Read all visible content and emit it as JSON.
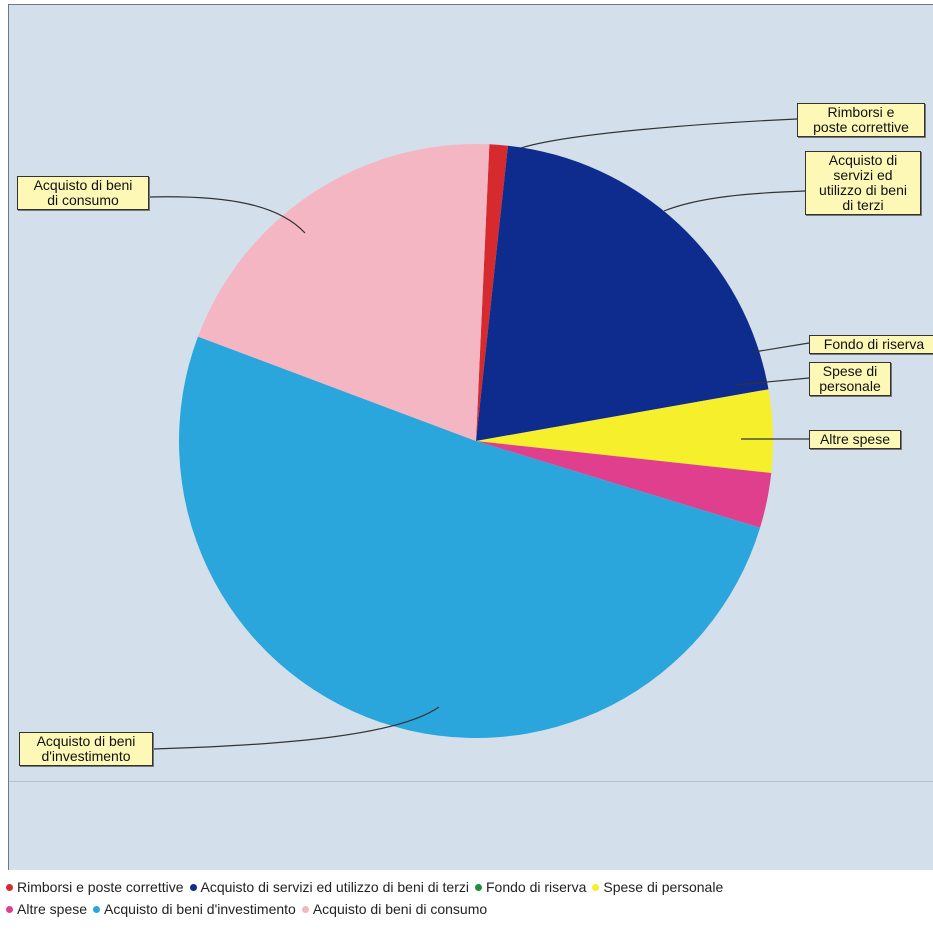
{
  "chart_data": {
    "type": "pie",
    "title": "",
    "slices": [
      {
        "label": "Rimborsi e poste correttive",
        "value": 1.0,
        "color": "#d62a2e"
      },
      {
        "label": "Acquisto di servizi ed utilizzo di beni di terzi",
        "value": 20.5,
        "color": "#0e2c8e"
      },
      {
        "label": "Fondo di riserva",
        "value": 0.0,
        "color": "#1e8f3a"
      },
      {
        "label": "Spese di personale",
        "value": 4.5,
        "color": "#f6ef2c"
      },
      {
        "label": "Altre spese",
        "value": 3.0,
        "color": "#e03f8e"
      },
      {
        "label": "Acquisto di beni d'investimento",
        "value": 51.0,
        "color": "#2aa6dc"
      },
      {
        "label": "Acquisto di beni di consumo",
        "value": 20.0,
        "color": "#f3b6c2"
      }
    ],
    "callouts": {
      "rimborsi": "Rimborsi e\nposte correttive",
      "servizi": "Acquisto di\nservizi ed\nutilizzo di beni\ndi terzi",
      "fondo": "Fondo di riserva",
      "personale": "Spese di\npersonale",
      "altre": "Altre spese",
      "investimento": "Acquisto di beni\nd'investimento",
      "consumo": "Acquisto di beni\ndi consumo"
    },
    "legend": {
      "row1": [
        {
          "label": "Rimborsi e poste correttive",
          "color": "#d62a2e"
        },
        {
          "label": "Acquisto di servizi ed utilizzo di beni di terzi",
          "color": "#0e2c8e"
        },
        {
          "label": "Fondo di riserva",
          "color": "#1e8f3a"
        },
        {
          "label": "Spese di personale",
          "color": "#f6ef2c"
        }
      ],
      "row2": [
        {
          "label": "Altre spese",
          "color": "#e03f8e"
        },
        {
          "label": "Acquisto di beni d'investimento",
          "color": "#2aa6dc"
        },
        {
          "label": "Acquisto di beni di consumo",
          "color": "#f3b6c2"
        }
      ],
      "placement": "bottom"
    }
  }
}
